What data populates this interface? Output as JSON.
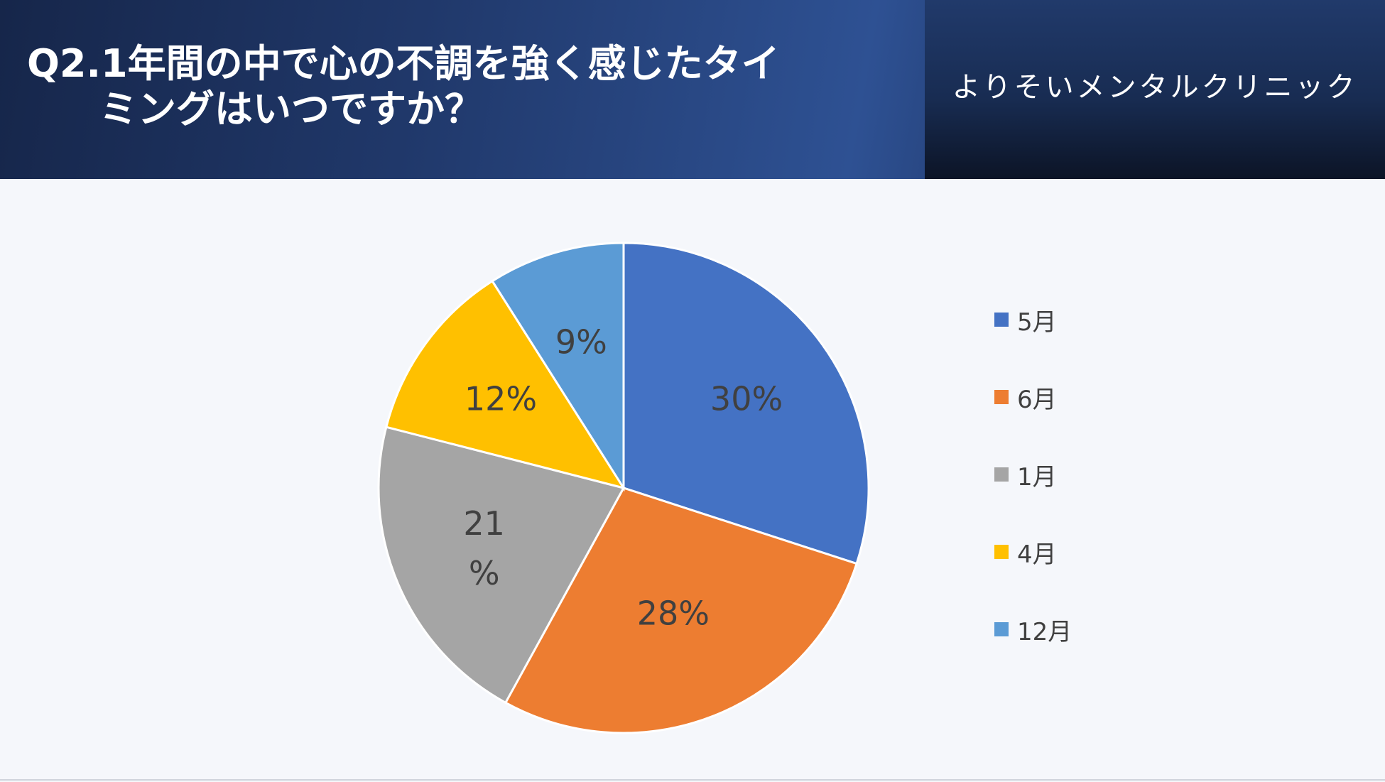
{
  "header": {
    "title_line1": "Q2.1年間の中で心の不調を強く感じたタイ",
    "title_line2": "ミングはいつですか？",
    "clinic_name": "よりそいメンタルクリニック"
  },
  "chart_data": {
    "type": "pie",
    "categories": [
      "5月",
      "6月",
      "1月",
      "4月",
      "12月"
    ],
    "values": [
      30,
      28,
      21,
      12,
      9
    ],
    "data_labels": [
      "30%",
      "28%",
      "21\n%",
      "12%",
      "9%"
    ],
    "colors": [
      "#4472c4",
      "#ed7d31",
      "#a5a5a5",
      "#ffc000",
      "#5b9bd5"
    ],
    "legend_position": "right",
    "start_angle": "12 o'clock, clockwise"
  }
}
